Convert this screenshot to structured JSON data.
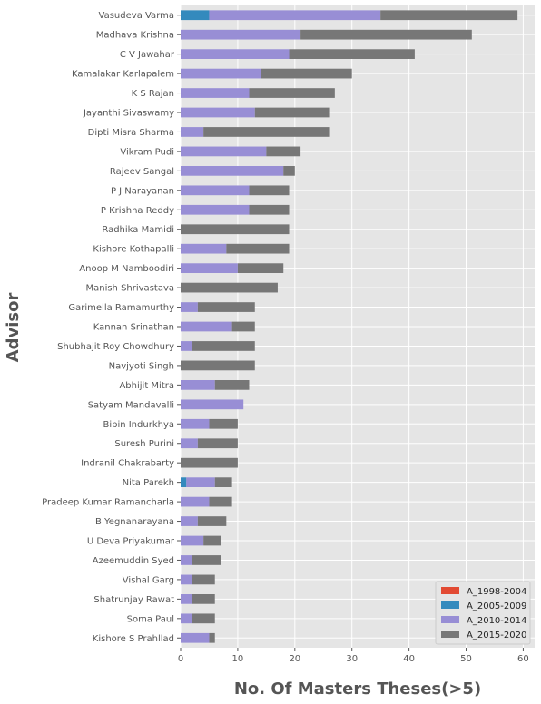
{
  "chart_data": {
    "type": "bar",
    "orientation": "horizontal",
    "stacked": true,
    "style": "ggplot",
    "xlabel": "No. Of Masters Theses(>5)",
    "ylabel": "Advisor",
    "xlim": [
      0,
      62
    ],
    "xticks": [
      "0",
      "10",
      "20",
      "30",
      "40",
      "50",
      "60"
    ],
    "grid": true,
    "legend_position": "lower-right",
    "categories": [
      "Vasudeva Varma",
      "Madhava Krishna",
      "C V Jawahar",
      "Kamalakar Karlapalem",
      "K S Rajan",
      "Jayanthi Sivaswamy",
      "Dipti Misra Sharma",
      "Vikram Pudi",
      "Rajeev Sangal",
      "P J Narayanan",
      "P Krishna Reddy",
      "Radhika Mamidi",
      "Kishore Kothapalli",
      "Anoop M Namboodiri",
      "Manish Shrivastava",
      "Garimella Ramamurthy",
      "Kannan Srinathan",
      "Shubhajit Roy Chowdhury",
      "Navjyoti Singh",
      "Abhijit Mitra",
      "Satyam Mandavalli",
      "Bipin Indurkhya",
      "Suresh Purini",
      "Indranil Chakrabarty",
      "Nita Parekh",
      "Pradeep Kumar Ramancharla",
      "B Yegnanarayana",
      "U Deva Priyakumar",
      "Azeemuddin Syed",
      "Vishal Garg",
      "Shatrunjay Rawat",
      "Soma Paul",
      "Kishore S Prahllad"
    ],
    "series": [
      {
        "name": "A_1998-2004",
        "color": "#E24A33",
        "values": [
          0,
          0,
          0,
          0,
          0,
          0,
          0,
          0,
          0,
          0,
          0,
          0,
          0,
          0,
          0,
          0,
          0,
          0,
          0,
          0,
          0,
          0,
          0,
          0,
          0,
          0,
          0,
          0,
          0,
          0,
          0,
          0,
          0
        ]
      },
      {
        "name": "A_2005-2009",
        "color": "#348ABD",
        "values": [
          5,
          0,
          0,
          0,
          0,
          0,
          0,
          0,
          0,
          0,
          0,
          0,
          0,
          0,
          0,
          0,
          0,
          0,
          0,
          0,
          0,
          0,
          0,
          0,
          1,
          0,
          0,
          0,
          0,
          0,
          0,
          0,
          0
        ]
      },
      {
        "name": "A_2010-2014",
        "color": "#988ED5",
        "values": [
          30,
          21,
          19,
          14,
          12,
          13,
          4,
          15,
          18,
          12,
          12,
          0,
          8,
          10,
          0,
          3,
          9,
          2,
          0,
          6,
          11,
          5,
          3,
          0,
          5,
          5,
          3,
          4,
          2,
          2,
          2,
          2,
          5
        ]
      },
      {
        "name": "A_2015-2020",
        "color": "#777777",
        "values": [
          24,
          30,
          22,
          16,
          15,
          13,
          22,
          6,
          2,
          7,
          7,
          19,
          11,
          8,
          17,
          10,
          4,
          11,
          13,
          6,
          0,
          5,
          7,
          10,
          3,
          4,
          5,
          3,
          5,
          4,
          4,
          4,
          1
        ]
      }
    ]
  }
}
